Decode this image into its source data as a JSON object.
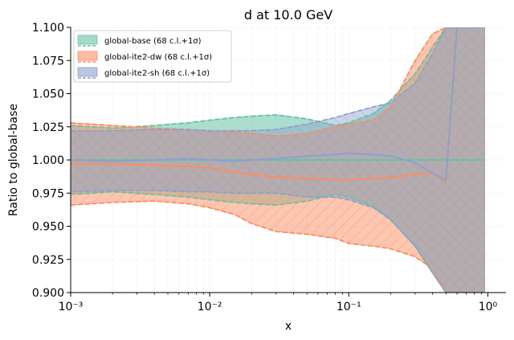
{
  "chart_data": {
    "type": "line",
    "title": "d at 10.0 GeV",
    "xlabel": "x",
    "ylabel": "Ratio to global-base",
    "xscale": "log",
    "xlim": [
      0.001,
      1.35
    ],
    "ylim": [
      0.9,
      1.1
    ],
    "xticks": [
      0.001,
      0.01,
      0.1,
      1
    ],
    "xtick_labels": [
      "10⁻³",
      "10⁻²",
      "10⁻¹",
      "10⁰"
    ],
    "yticks": [
      0.9,
      0.925,
      0.95,
      0.975,
      1.0,
      1.025,
      1.05,
      1.075,
      1.1
    ],
    "ytick_labels": [
      "0.900",
      "0.925",
      "0.950",
      "0.975",
      "1.000",
      "1.025",
      "1.050",
      "1.075",
      "1.100"
    ],
    "legend_position": "top-left",
    "x": [
      0.001,
      0.002,
      0.004,
      0.007,
      0.01,
      0.015,
      0.02,
      0.03,
      0.05,
      0.08,
      0.1,
      0.15,
      0.2,
      0.3,
      0.4,
      0.5,
      0.6,
      0.7,
      0.8,
      0.9,
      0.95
    ],
    "series": [
      {
        "name": "global-base (68 c.l.+1σ)",
        "color": "#66c2a5",
        "central": [
          1.0,
          1.0,
          1.0,
          1.0,
          1.0,
          1.0,
          1.0,
          1.0,
          1.0,
          1.0,
          1.0,
          1.0,
          1.0,
          1.0,
          1.0,
          1.0,
          1.0,
          1.0,
          1.0,
          1.0,
          1.0
        ],
        "upper": [
          1.026,
          1.024,
          1.026,
          1.028,
          1.03,
          1.032,
          1.033,
          1.034,
          1.031,
          1.026,
          1.028,
          1.035,
          1.045,
          1.065,
          1.085,
          1.1,
          1.1,
          1.1,
          1.1,
          1.1,
          1.1
        ],
        "lower": [
          0.974,
          0.976,
          0.974,
          0.972,
          0.97,
          0.968,
          0.967,
          0.966,
          0.969,
          0.974,
          0.972,
          0.965,
          0.955,
          0.935,
          0.915,
          0.9,
          0.9,
          0.9,
          0.9,
          0.9,
          0.9
        ]
      },
      {
        "name": "global-ite2-dw (68 c.l.+1σ)",
        "color": "#fc8d62",
        "central": [
          0.997,
          0.997,
          0.996,
          0.995,
          0.994,
          0.991,
          0.989,
          0.987,
          0.986,
          0.985,
          0.985,
          0.986,
          0.987,
          0.989,
          0.99,
          0.984,
          1.1,
          1.1,
          1.1,
          1.1,
          1.1
        ],
        "upper": [
          1.028,
          1.026,
          1.024,
          1.023,
          1.022,
          1.021,
          1.02,
          1.018,
          1.02,
          1.025,
          1.027,
          1.03,
          1.04,
          1.075,
          1.095,
          1.1,
          1.1,
          1.1,
          1.1,
          1.1,
          1.1
        ],
        "lower": [
          0.966,
          0.968,
          0.969,
          0.967,
          0.964,
          0.959,
          0.952,
          0.946,
          0.944,
          0.941,
          0.937,
          0.935,
          0.933,
          0.927,
          0.918,
          0.9,
          0.9,
          0.9,
          0.9,
          0.9,
          0.9
        ]
      },
      {
        "name": "global-ite2-sh (68 c.l.+1σ)",
        "color": "#8da0cb",
        "central": [
          1.0,
          0.999,
          1.0,
          1.001,
          1.0,
          0.999,
          1.0,
          1.001,
          1.003,
          1.004,
          1.005,
          1.004,
          1.003,
          0.998,
          0.99,
          0.985,
          1.1,
          1.1,
          1.1,
          1.1,
          1.1
        ],
        "upper": [
          1.022,
          1.022,
          1.023,
          1.023,
          1.022,
          1.022,
          1.022,
          1.023,
          1.027,
          1.032,
          1.035,
          1.04,
          1.043,
          1.058,
          1.08,
          1.1,
          1.1,
          1.1,
          1.1,
          1.1,
          1.1
        ],
        "lower": [
          0.976,
          0.977,
          0.977,
          0.976,
          0.976,
          0.975,
          0.975,
          0.975,
          0.972,
          0.972,
          0.97,
          0.964,
          0.955,
          0.935,
          0.915,
          0.9,
          0.9,
          0.9,
          0.9,
          0.9,
          0.9
        ]
      }
    ]
  }
}
